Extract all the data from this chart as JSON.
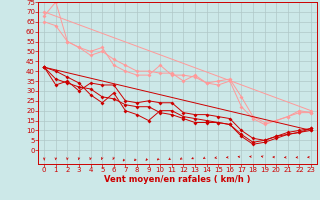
{
  "background_color": "#cce8e8",
  "grid_color": "#b0c8c8",
  "xlabel": "Vent moyen/en rafales ( km/h )",
  "xlabel_color": "#cc0000",
  "xlabel_fontsize": 6,
  "xtick_fontsize": 5,
  "ytick_fontsize": 5,
  "xlim": [
    -0.5,
    23.5
  ],
  "ylim": [
    0,
    75
  ],
  "yticks": [
    0,
    5,
    10,
    15,
    20,
    25,
    30,
    35,
    40,
    45,
    50,
    55,
    60,
    65,
    70,
    75
  ],
  "xticks": [
    0,
    1,
    2,
    3,
    4,
    5,
    6,
    7,
    8,
    9,
    10,
    11,
    12,
    13,
    14,
    15,
    16,
    17,
    18,
    19,
    20,
    21,
    22,
    23
  ],
  "lines_pink": [
    {
      "x": [
        0,
        1,
        2,
        3,
        4,
        5,
        6,
        7,
        8,
        9,
        10,
        11,
        12,
        13,
        14,
        15,
        16,
        17,
        18,
        19,
        20,
        21,
        22,
        23
      ],
      "y": [
        68,
        75,
        55,
        52,
        50,
        52,
        43,
        40,
        38,
        38,
        43,
        38,
        38,
        37,
        34,
        35,
        36,
        27,
        17,
        14,
        15,
        17,
        20,
        19
      ]
    },
    {
      "x": [
        0,
        1,
        2,
        3,
        4,
        5,
        6,
        7,
        8,
        9,
        10,
        11,
        12,
        13,
        14,
        15,
        16,
        17,
        18,
        19,
        20,
        21,
        22,
        23
      ],
      "y": [
        65,
        63,
        55,
        52,
        48,
        50,
        46,
        43,
        40,
        40,
        39,
        39,
        35,
        38,
        34,
        33,
        35,
        22,
        16,
        13,
        15,
        17,
        19,
        19
      ]
    },
    {
      "x": [
        0,
        23
      ],
      "y": [
        70,
        20
      ]
    }
  ],
  "lines_red": [
    {
      "x": [
        0,
        1,
        2,
        3,
        4,
        5,
        6,
        7,
        8,
        9,
        10,
        11,
        12,
        13,
        14,
        15,
        16,
        17,
        18,
        19,
        20,
        21,
        22,
        23
      ],
      "y": [
        42,
        33,
        35,
        30,
        34,
        33,
        33,
        25,
        24,
        25,
        24,
        24,
        19,
        18,
        18,
        17,
        16,
        10,
        6,
        5,
        7,
        9,
        10,
        11
      ]
    },
    {
      "x": [
        0,
        1,
        2,
        3,
        4,
        5,
        6,
        7,
        8,
        9,
        10,
        11,
        12,
        13,
        14,
        15,
        16,
        17,
        18,
        19,
        20,
        21,
        22,
        23
      ],
      "y": [
        42,
        40,
        37,
        34,
        28,
        24,
        29,
        20,
        18,
        15,
        20,
        20,
        17,
        16,
        15,
        14,
        13,
        7,
        3,
        4,
        6,
        8,
        9,
        10
      ]
    },
    {
      "x": [
        0,
        1,
        2,
        3,
        4,
        5,
        6,
        7,
        8,
        9,
        10,
        11,
        12,
        13,
        14,
        15,
        16,
        17,
        18,
        19,
        20,
        21,
        22,
        23
      ],
      "y": [
        42,
        36,
        34,
        32,
        31,
        27,
        26,
        23,
        22,
        22,
        19,
        18,
        16,
        14,
        14,
        14,
        13,
        8,
        4,
        5,
        7,
        8,
        9,
        11
      ]
    },
    {
      "x": [
        0,
        23
      ],
      "y": [
        42,
        10
      ]
    }
  ],
  "wind_arrows": {
    "x": [
      0,
      1,
      2,
      3,
      4,
      5,
      6,
      7,
      8,
      9,
      10,
      11,
      12,
      13,
      14,
      15,
      16,
      17,
      18,
      19,
      20,
      21,
      22,
      23
    ],
    "color": "#cc0000",
    "angles_deg": [
      180,
      185,
      190,
      195,
      200,
      205,
      210,
      220,
      225,
      230,
      235,
      240,
      245,
      250,
      255,
      260,
      265,
      275,
      278,
      280,
      270,
      265,
      265,
      268
    ]
  },
  "marker_size": 2,
  "line_width": 0.7,
  "pink_color": "#ff9999",
  "red_color": "#cc0000",
  "tick_color": "#cc0000",
  "axis_color": "#cc0000"
}
